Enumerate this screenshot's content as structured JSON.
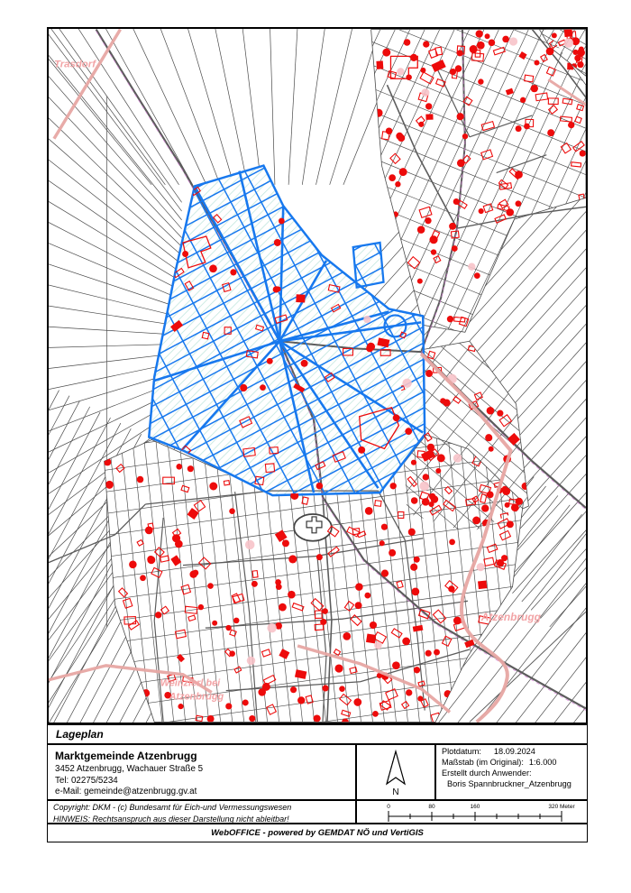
{
  "title_row": {
    "label": "Lageplan"
  },
  "org": {
    "name": "Marktgemeinde Atzenbrugg",
    "address": "3452 Atzenbrugg, Wachauer Straße 5",
    "tel": "Tel: 02275/5234",
    "email": "e-Mail: gemeinde@atzenbrugg.gv.at"
  },
  "plot_info": {
    "date_label": "Plotdatum:",
    "date_value": "18.09.2024",
    "scale_label": "Maßstab (im Original):",
    "scale_value": "1:6.000",
    "creator_label": "Erstellt durch Anwender:",
    "creator_value": "Boris Spannbruckner_Atzenbrugg"
  },
  "legal": {
    "copyright": "Copyright: DKM - (c) Bundesamt für Eich-und Vermessungswesen",
    "hinweis": "HINWEIS: Rechtsanspruch aus dieser Darstellung nicht ableitbar!"
  },
  "footer": {
    "text": "WebOFFICE - powered by GEMDAT NÖ und VertiGIS"
  },
  "map": {
    "labels": {
      "top_left": "Trasdorf",
      "right": "Atzenbrugg",
      "bottom_left_line1": "Weinzierl bei",
      "bottom_left_line2": "Atzenbrugg"
    },
    "north_label": "N",
    "scale_bar": {
      "t0": "0",
      "t1": "80",
      "t2": "160",
      "t3": "320 Meter"
    },
    "colors": {
      "selection_blue": "#1778ee",
      "selection_hatch": "#bfe5dc",
      "building_red": "#ed0b0b",
      "pale_pink_dot": "#f7c3c9",
      "road_pink": "#e7a6a3",
      "label_pink": "#f2a4a6",
      "parcel_gray": "#4a4a4a",
      "road_gray": "#5c5c5c",
      "magenta_dash": "#d37ad3"
    }
  }
}
